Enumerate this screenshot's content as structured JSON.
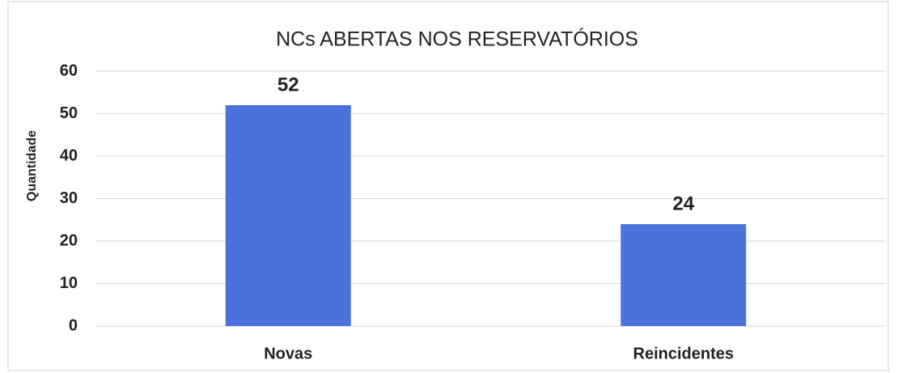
{
  "chart_data": {
    "type": "bar",
    "title": "NCs ABERTAS NOS RESERVATÓRIOS",
    "y_label": "Quantidade",
    "categories": [
      "Novas",
      "Reincidentes"
    ],
    "values": [
      52,
      24
    ],
    "color": "#4a72dc",
    "ylim": [
      0,
      60
    ],
    "yticks": [
      0,
      10,
      20,
      30,
      40,
      50,
      60
    ],
    "grid": true
  }
}
